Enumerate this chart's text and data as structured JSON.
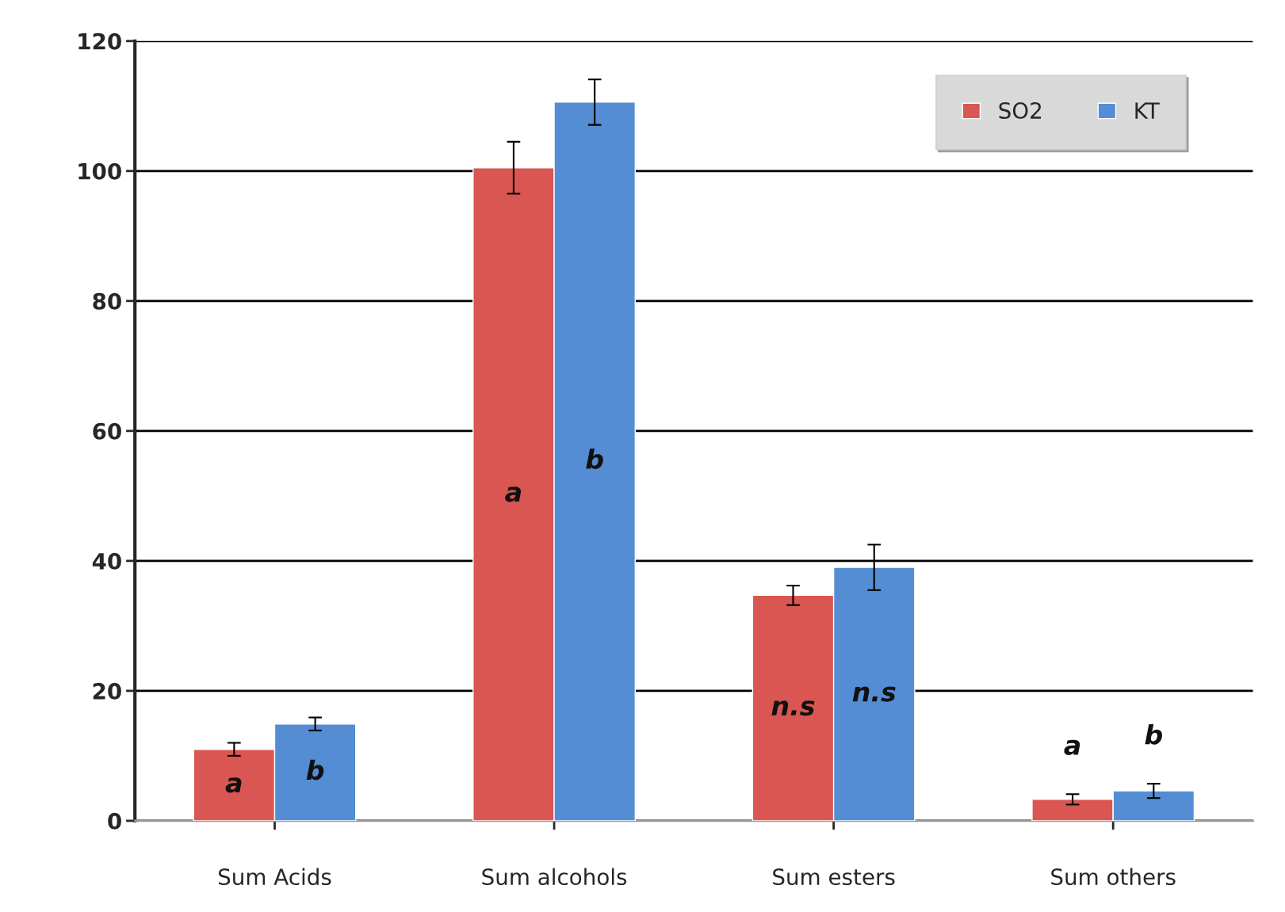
{
  "chart_data": {
    "type": "bar",
    "categories": [
      "Sum Acids",
      "Sum alcohols",
      "Sum esters",
      "Sum others"
    ],
    "series": [
      {
        "name": "SO2",
        "color": "#d95652",
        "values": [
          11.0,
          100.5,
          34.7,
          3.3
        ],
        "errors": [
          1.0,
          4.0,
          1.5,
          0.8
        ],
        "value_labels": [
          "a",
          "a",
          "n.s",
          "a"
        ]
      },
      {
        "name": "KT",
        "color": "#548dd4",
        "values": [
          14.9,
          110.6,
          39.0,
          4.6
        ],
        "errors": [
          1.0,
          3.5,
          3.5,
          1.1
        ],
        "value_labels": [
          "b",
          "b",
          "n.s",
          "b"
        ]
      }
    ],
    "ylim": [
      0,
      120
    ],
    "yticks": [
      0,
      20,
      40,
      60,
      80,
      100,
      120
    ],
    "grid": "y",
    "legend": "top right"
  }
}
